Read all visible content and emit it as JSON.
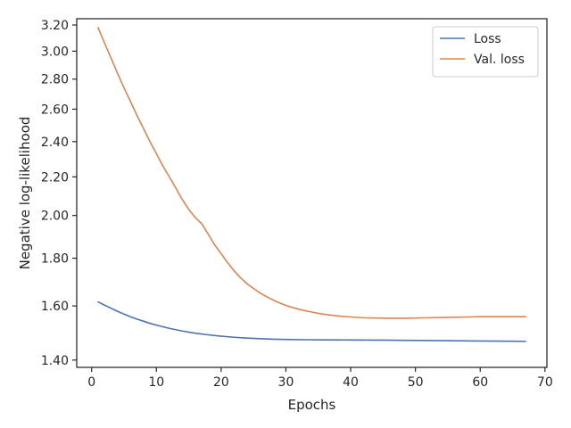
{
  "chart_data": {
    "type": "line",
    "xlabel": "Epochs",
    "ylabel": "Negative log-likelihood",
    "xlim": [
      -2.3,
      70.3
    ],
    "ylim": [
      1.375,
      3.25
    ],
    "yscale": "log",
    "x_ticks": [
      0,
      10,
      20,
      30,
      40,
      50,
      60,
      70
    ],
    "y_ticks": [
      1.4,
      1.6,
      1.8,
      2.0,
      2.2,
      2.4,
      2.6,
      2.8,
      3.0,
      3.2
    ],
    "y_tick_labels": [
      "1.40",
      "1.60",
      "1.80",
      "2.00",
      "2.20",
      "2.40",
      "2.60",
      "2.80",
      "3.00",
      "3.20"
    ],
    "grid": false,
    "legend_position": "top-right",
    "series": [
      {
        "name": "Loss",
        "color": "#4c72b0",
        "x": [
          1,
          2,
          3,
          4,
          5,
          6,
          7,
          8,
          9,
          10,
          12,
          14,
          16,
          18,
          20,
          22,
          24,
          26,
          28,
          30,
          33,
          36,
          40,
          45,
          50,
          55,
          60,
          65,
          67
        ],
        "y": [
          1.616,
          1.603,
          1.591,
          1.579,
          1.568,
          1.558,
          1.549,
          1.541,
          1.533,
          1.526,
          1.514,
          1.504,
          1.496,
          1.49,
          1.485,
          1.481,
          1.478,
          1.476,
          1.474,
          1.473,
          1.472,
          1.4715,
          1.471,
          1.4705,
          1.4695,
          1.4685,
          1.4675,
          1.4665,
          1.466
        ]
      },
      {
        "name": "Val. loss",
        "color": "#dd8452",
        "x": [
          1,
          2,
          3,
          4,
          5,
          6,
          7,
          8,
          9,
          10,
          11,
          12,
          13,
          14,
          15,
          16,
          17,
          18,
          19,
          20,
          21,
          22,
          23,
          24,
          25,
          26,
          27,
          28,
          29,
          30,
          31,
          32,
          33,
          34,
          35,
          36,
          38,
          40,
          42,
          44,
          46,
          48,
          50,
          52,
          54,
          56,
          58,
          60,
          62,
          64,
          67
        ],
        "y": [
          3.18,
          3.06,
          2.95,
          2.84,
          2.74,
          2.65,
          2.56,
          2.48,
          2.4,
          2.33,
          2.26,
          2.2,
          2.14,
          2.08,
          2.03,
          1.99,
          1.96,
          1.91,
          1.86,
          1.82,
          1.78,
          1.745,
          1.715,
          1.69,
          1.67,
          1.652,
          1.637,
          1.624,
          1.612,
          1.602,
          1.594,
          1.587,
          1.581,
          1.576,
          1.571,
          1.567,
          1.561,
          1.557,
          1.554,
          1.553,
          1.552,
          1.552,
          1.553,
          1.554,
          1.555,
          1.556,
          1.557,
          1.558,
          1.558,
          1.558,
          1.558
        ]
      }
    ]
  }
}
